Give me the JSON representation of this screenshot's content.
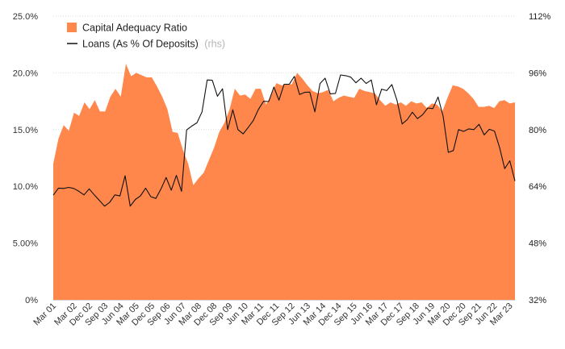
{
  "chart_data": {
    "type": "area+line",
    "colors": {
      "area": "#ff874b",
      "line": "#111111",
      "grid": "#dddddd"
    },
    "y_left": {
      "ylim": [
        0,
        25
      ],
      "ticks": [
        "0%",
        "5.00%",
        "10.0%",
        "15.0%",
        "20.0%",
        "25.0%"
      ],
      "tick_values": [
        0,
        5,
        10,
        15,
        20,
        25
      ]
    },
    "y_right": {
      "ylim": [
        32,
        112
      ],
      "ticks": [
        "32%",
        "48%",
        "64%",
        "80%",
        "96%",
        "112%"
      ],
      "tick_values": [
        32,
        48,
        64,
        80,
        96,
        112
      ]
    },
    "x_labels": [
      "Mar 01",
      "Mar 02",
      "Dec 02",
      "Sep 03",
      "Jun 04",
      "Mar 05",
      "Dec 05",
      "Sep 06",
      "Jun 07",
      "Mar 08",
      "Dec 08",
      "Sep 09",
      "Jun 10",
      "Mar 11",
      "Dec 11",
      "Sep 12",
      "Jun 13",
      "Mar 14",
      "Dec 14",
      "Sep 15",
      "Jun 16",
      "Mar 17",
      "Dec 17",
      "Sep 18",
      "Jun 19",
      "Mar 20",
      "Dec 20",
      "Sep 21",
      "Jun 22",
      "Mar 23"
    ],
    "x_label_index": [
      0,
      4,
      7,
      10,
      13,
      16,
      19,
      22,
      25,
      28,
      31,
      34,
      37,
      40,
      43,
      46,
      49,
      52,
      55,
      58,
      61,
      64,
      67,
      70,
      73,
      76,
      79,
      82,
      85,
      88
    ],
    "series": [
      {
        "name": "Capital Adequacy Ratio",
        "legend_label": "Capital Adequacy Ratio",
        "type": "area",
        "axis": "left",
        "values": [
          12.0,
          14.2,
          15.4,
          14.9,
          16.5,
          16.2,
          17.4,
          16.8,
          17.6,
          16.6,
          16.6,
          17.9,
          18.6,
          17.9,
          20.8,
          19.7,
          20.0,
          19.8,
          19.6,
          19.6,
          18.8,
          17.9,
          16.8,
          14.8,
          14.7,
          13.2,
          12.0,
          10.1,
          10.7,
          11.2,
          12.3,
          13.4,
          14.8,
          15.6,
          16.8,
          18.6,
          18.0,
          18.1,
          17.7,
          18.6,
          18.6,
          17.2,
          18.0,
          19.1,
          18.9,
          19.0,
          19.0,
          20.0,
          19.5,
          18.9,
          18.4,
          18.2,
          18.3,
          18.5,
          17.5,
          17.8,
          18.0,
          17.9,
          17.8,
          18.6,
          18.4,
          18.3,
          18.2,
          17.6,
          17.1,
          17.4,
          17.2,
          17.4,
          17.1,
          17.5,
          17.3,
          17.4,
          16.9,
          17.3,
          17.2,
          16.6,
          17.8,
          18.9,
          18.8,
          18.6,
          18.2,
          17.7,
          17.0,
          17.0,
          17.1,
          16.9,
          17.5,
          17.6,
          17.3,
          17.4
        ]
      },
      {
        "name": "Loans (As % Of Deposits)",
        "legend_label": "Loans (As % Of Deposits)",
        "legend_note": "(rhs)",
        "type": "line",
        "axis": "right",
        "values": [
          61.5,
          63.5,
          63.4,
          63.7,
          63.4,
          62.6,
          61.6,
          63.3,
          61.6,
          60.0,
          58.4,
          59.5,
          61.6,
          61.3,
          67.0,
          58.4,
          60.3,
          61.3,
          63.5,
          61.1,
          60.6,
          63.3,
          66.5,
          62.9,
          67.1,
          62.6,
          79.9,
          81.0,
          81.9,
          85.0,
          94.0,
          93.9,
          89.4,
          91.5,
          80.0,
          85.6,
          80.0,
          78.8,
          80.6,
          82.6,
          85.7,
          88.0,
          87.9,
          92.0,
          88.3,
          92.8,
          92.8,
          95.0,
          89.9,
          90.5,
          90.6,
          85.0,
          93.0,
          94.5,
          90.1,
          90.2,
          95.4,
          95.2,
          94.8,
          93.2,
          94.5,
          93.0,
          94.0,
          87.0,
          91.4,
          91.0,
          92.7,
          88.3,
          81.6,
          82.8,
          84.9,
          83.1,
          84.2,
          86.1,
          85.9,
          89.2,
          83.8,
          73.6,
          74.1,
          80.0,
          79.5,
          80.2,
          80.0,
          81.5,
          78.5,
          80.1,
          79.6,
          75.0,
          69.0,
          71.2,
          65.5
        ]
      }
    ]
  }
}
